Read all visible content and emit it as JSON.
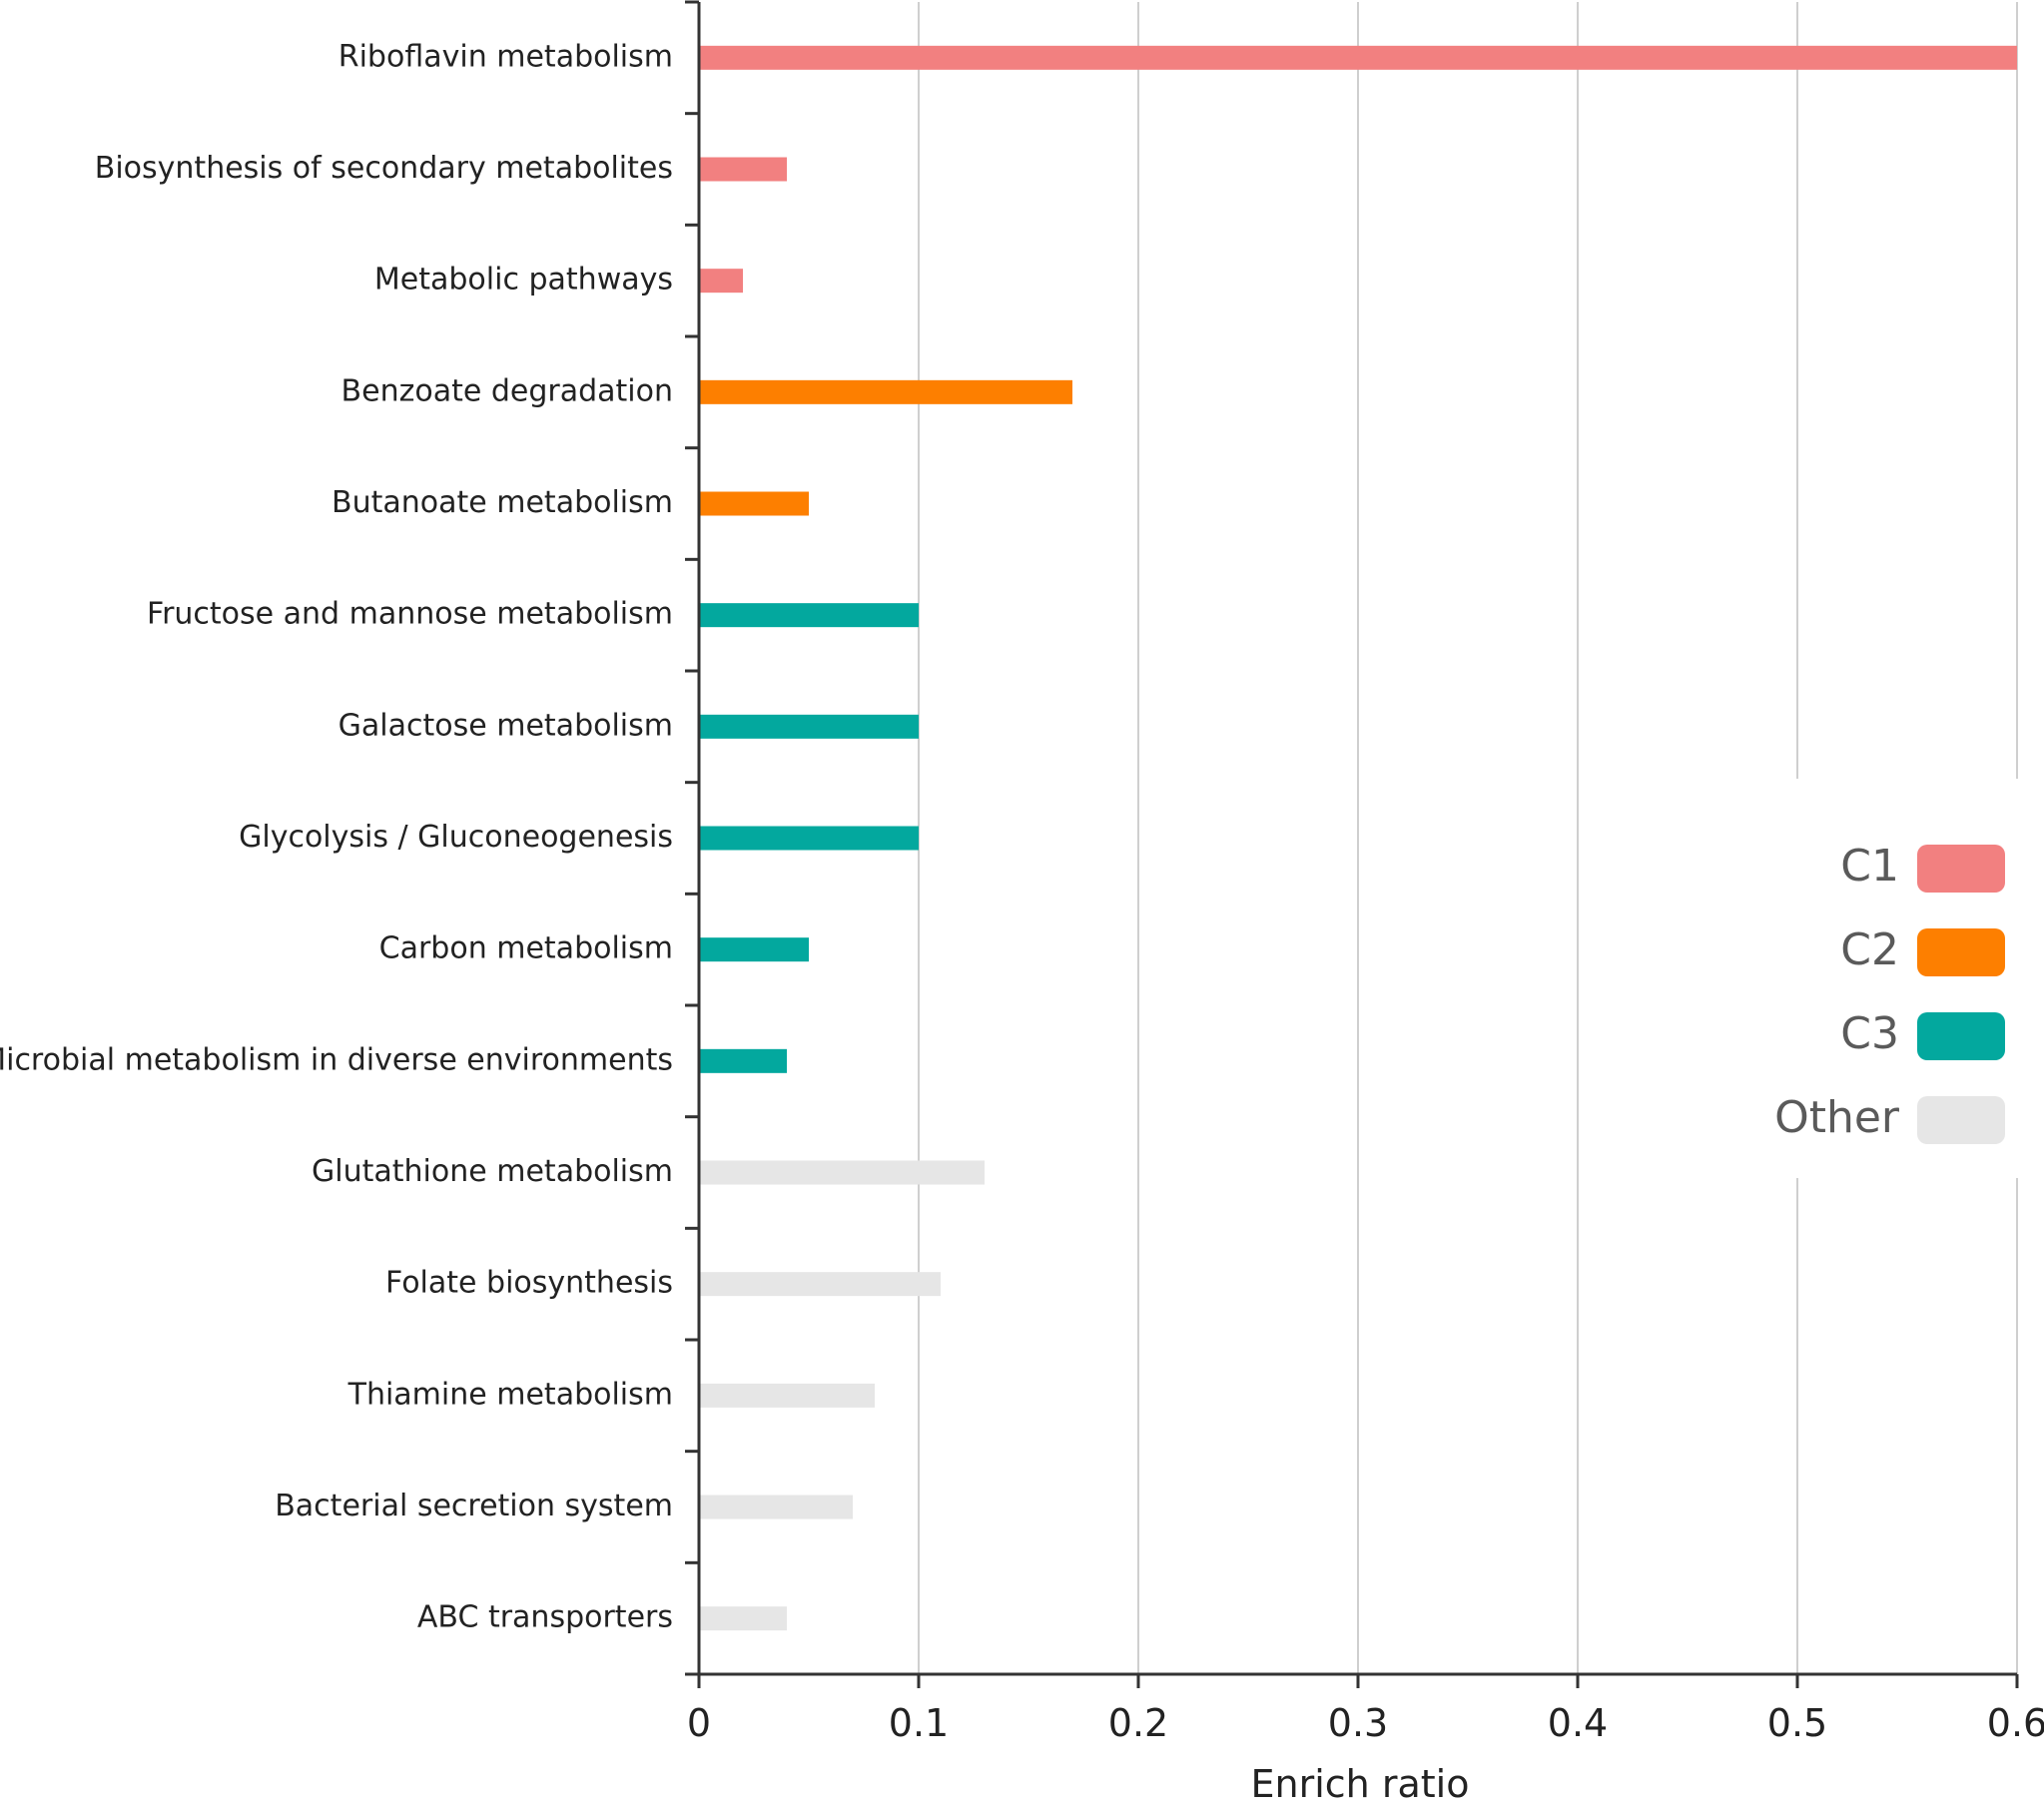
{
  "chart_data": {
    "type": "bar",
    "orientation": "horizontal",
    "title": "",
    "xlabel": "Enrich ratio",
    "ylabel": "",
    "xlim": [
      0,
      0.6
    ],
    "xticks": [
      "0",
      "0.1",
      "0.2",
      "0.3",
      "0.4",
      "0.5",
      "0.6"
    ],
    "xtick_values": [
      0,
      0.1,
      0.2,
      0.3,
      0.4,
      0.5,
      0.6
    ],
    "grid": "vertical",
    "legend_position": "right",
    "categories": [
      "Riboflavin metabolism",
      "Biosynthesis of secondary metabolites",
      "Metabolic pathways",
      "Benzoate degradation",
      "Butanoate metabolism",
      "Fructose and mannose metabolism",
      "Galactose metabolism",
      "Glycolysis / Gluconeogenesis",
      "Carbon metabolism",
      "Microbial metabolism in diverse environments",
      "Glutathione metabolism",
      "Folate biosynthesis",
      "Thiamine metabolism",
      "Bacterial secretion system",
      "ABC transporters"
    ],
    "values": [
      0.6,
      0.04,
      0.02,
      0.17,
      0.05,
      0.1,
      0.1,
      0.1,
      0.05,
      0.04,
      0.13,
      0.11,
      0.08,
      0.07,
      0.04
    ],
    "groups": [
      "C1",
      "C1",
      "C1",
      "C2",
      "C2",
      "C3",
      "C3",
      "C3",
      "C3",
      "C3",
      "Other",
      "Other",
      "Other",
      "Other",
      "Other"
    ],
    "legend": [
      {
        "name": "C1",
        "color": "#f28080"
      },
      {
        "name": "C2",
        "color": "#fd7f00"
      },
      {
        "name": "C3",
        "color": "#03a89e"
      },
      {
        "name": "Other",
        "color": "#e6e6e6"
      }
    ]
  }
}
